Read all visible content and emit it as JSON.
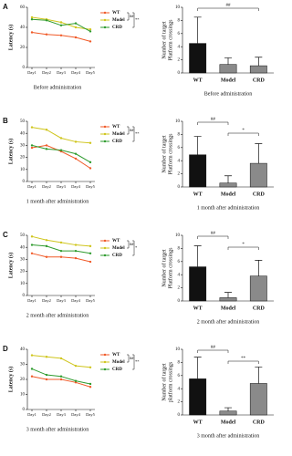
{
  "panels": [
    {
      "letter": "A"
    },
    {
      "letter": "B"
    },
    {
      "letter": "C"
    },
    {
      "letter": "D"
    }
  ],
  "chart_data": [
    {
      "type": "line",
      "ylabel": "Latency (s)",
      "caption": "Before administration",
      "categories": [
        "Day1",
        "Day2",
        "Day3",
        "Day4",
        "Day5"
      ],
      "ylim": [
        0,
        60
      ],
      "yticks": [
        0,
        20,
        40,
        60
      ],
      "series": [
        {
          "name": "WT",
          "color": "#f05a28",
          "values": [
            35,
            33,
            32,
            30,
            26
          ]
        },
        {
          "name": "Model",
          "color": "#cfc51c",
          "values": [
            50,
            48,
            45,
            40,
            38
          ]
        },
        {
          "name": "CRD",
          "color": "#2e9b2e",
          "values": [
            48,
            47,
            42,
            44,
            36
          ]
        }
      ],
      "annotations": [
        "##",
        "**"
      ]
    },
    {
      "type": "bar",
      "ylabel": [
        "Number of target",
        "Platform crossings"
      ],
      "caption": "Before administration",
      "categories": [
        "WT",
        "Model",
        "CRD"
      ],
      "values": [
        4.5,
        1.3,
        1.1
      ],
      "errors": [
        4,
        1,
        1.3
      ],
      "colors": [
        "#111111",
        "#8a8a8a",
        "#8a8a8a"
      ],
      "ylim": [
        0,
        10
      ],
      "yticks": [
        0,
        2,
        4,
        6,
        8,
        10
      ],
      "annotations": [
        "##"
      ]
    },
    {
      "type": "line",
      "ylabel": "Latency (s)",
      "caption": "1 month after administration",
      "categories": [
        "Day1",
        "Day2",
        "Day3",
        "Day4",
        "Day5"
      ],
      "ylim": [
        0,
        50
      ],
      "yticks": [
        0,
        10,
        20,
        30,
        40,
        50
      ],
      "series": [
        {
          "name": "WT",
          "color": "#f05a28",
          "values": [
            28,
            30,
            25,
            19,
            11
          ]
        },
        {
          "name": "Model",
          "color": "#cfc51c",
          "values": [
            45,
            43,
            36,
            33,
            32
          ]
        },
        {
          "name": "CRD",
          "color": "#2e9b2e",
          "values": [
            30,
            27,
            26,
            23,
            16
          ]
        }
      ],
      "annotations": [
        "##",
        "**"
      ]
    },
    {
      "type": "bar",
      "ylabel": [
        "Number of target",
        "Platform crossings"
      ],
      "caption": "1 month after administration",
      "categories": [
        "WT",
        "Model",
        "CRD"
      ],
      "values": [
        4.9,
        0.6,
        3.6
      ],
      "errors": [
        2.8,
        1.1,
        3
      ],
      "colors": [
        "#111111",
        "#8a8a8a",
        "#8a8a8a"
      ],
      "ylim": [
        0,
        10
      ],
      "yticks": [
        0,
        2,
        4,
        6,
        8,
        10
      ],
      "annotations": [
        "##",
        "*"
      ]
    },
    {
      "type": "line",
      "ylabel": "Latency (s)",
      "caption": "2 month after administration",
      "categories": [
        "Day1",
        "Day2",
        "Day3",
        "Day4",
        "Day5"
      ],
      "ylim": [
        0,
        50
      ],
      "yticks": [
        0,
        10,
        20,
        30,
        40,
        50
      ],
      "series": [
        {
          "name": "WT",
          "color": "#f05a28",
          "values": [
            35,
            32,
            32,
            31,
            28
          ]
        },
        {
          "name": "Model",
          "color": "#cfc51c",
          "values": [
            49,
            46,
            44,
            42,
            41
          ]
        },
        {
          "name": "CRD",
          "color": "#2e9b2e",
          "values": [
            42,
            41,
            37,
            37,
            35
          ]
        }
      ],
      "annotations": [
        "##",
        "*"
      ]
    },
    {
      "type": "bar",
      "ylabel": [
        "Number of target",
        "Platform crossings"
      ],
      "caption": "2 month after administration",
      "categories": [
        "WT",
        "Model",
        "CRD"
      ],
      "values": [
        5.2,
        0.5,
        3.8
      ],
      "errors": [
        3.2,
        0.8,
        2.4
      ],
      "colors": [
        "#111111",
        "#8a8a8a",
        "#8a8a8a"
      ],
      "ylim": [
        0,
        10
      ],
      "yticks": [
        0,
        2,
        4,
        6,
        8,
        10
      ],
      "annotations": [
        "##",
        "*"
      ]
    },
    {
      "type": "line",
      "ylabel": "Latency (s)",
      "caption": "3 month after administration",
      "categories": [
        "Day1",
        "Day2",
        "Day3",
        "Day4",
        "Day5"
      ],
      "ylim": [
        0,
        40
      ],
      "yticks": [
        0,
        10,
        20,
        30,
        40
      ],
      "series": [
        {
          "name": "WT",
          "color": "#f05a28",
          "values": [
            22,
            20,
            20,
            18,
            15
          ]
        },
        {
          "name": "Model",
          "color": "#cfc51c",
          "values": [
            36,
            35,
            34,
            29,
            28
          ]
        },
        {
          "name": "CRD",
          "color": "#2e9b2e",
          "values": [
            27,
            23,
            22,
            19,
            17
          ]
        }
      ],
      "annotations": [
        "##",
        "**"
      ]
    },
    {
      "type": "bar",
      "ylabel": [
        "Number of target",
        "platform crossings"
      ],
      "caption": "3 month after administration",
      "categories": [
        "WT",
        "Model",
        "CRD"
      ],
      "values": [
        5.5,
        0.6,
        4.8
      ],
      "errors": [
        3.3,
        0.5,
        2.5
      ],
      "colors": [
        "#111111",
        "#8a8a8a",
        "#8a8a8a"
      ],
      "ylim": [
        0,
        10
      ],
      "yticks": [
        0,
        2,
        4,
        6,
        8,
        10
      ],
      "annotations": [
        "##",
        "**"
      ]
    }
  ]
}
